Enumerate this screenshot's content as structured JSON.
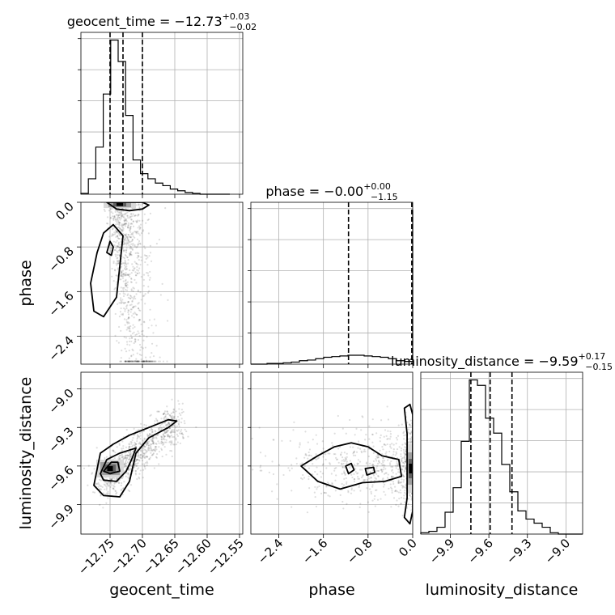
{
  "chart_data": {
    "type": "corner",
    "parameters": [
      "geocent_time",
      "phase",
      "luminosity_distance"
    ],
    "titles": [
      {
        "param": "geocent_time",
        "prefix": "geocent_time = ",
        "median": "−12.73",
        "plus": "+0.03",
        "minus": "−0.02"
      },
      {
        "param": "phase",
        "prefix": "phase = ",
        "median": "−0.00",
        "plus": "+0.00",
        "minus": "−1.15"
      },
      {
        "param": "luminosity_distance",
        "prefix": "luminosity_distance = ",
        "median": "−9.59",
        "plus": "+0.17",
        "minus": "−0.15"
      }
    ],
    "axes": {
      "geocent_time": {
        "range": [
          -12.795,
          -12.545
        ],
        "ticks": [
          -12.75,
          -12.7,
          -12.65,
          -12.6,
          -12.55
        ],
        "tick_labels": [
          "−12.75",
          "−12.70",
          "−12.65",
          "−12.60",
          "−12.55"
        ]
      },
      "phase": {
        "range": [
          -2.9,
          0.0
        ],
        "ticks": [
          -2.4,
          -1.6,
          -0.8,
          0.0
        ],
        "tick_labels": [
          "−2.4",
          "−1.6",
          "−0.8",
          "0.0"
        ]
      },
      "luminosity_distance": {
        "range": [
          -10.13,
          -8.87
        ],
        "ticks": [
          -9.9,
          -9.6,
          -9.3,
          -9.0
        ],
        "tick_labels": [
          "−9.9",
          "−9.6",
          "−9.3",
          "−9.0"
        ]
      }
    },
    "histograms": {
      "geocent_time": {
        "bins": [
          -12.795,
          -12.7835,
          -12.772,
          -12.7605,
          -12.749,
          -12.7375,
          -12.726,
          -12.7145,
          -12.703,
          -12.6915,
          -12.68,
          -12.6685,
          -12.657,
          -12.6455,
          -12.634,
          -12.6225,
          -12.611,
          -12.5995,
          -12.588,
          -12.5765,
          -12.565
        ],
        "counts": [
          1,
          18,
          55,
          117,
          180,
          155,
          92,
          40,
          24,
          18,
          13,
          10,
          6,
          4,
          2,
          1,
          0,
          0,
          0,
          0
        ],
        "quantiles": [
          -12.75,
          -12.73,
          -12.7
        ]
      },
      "phase": {
        "bins": [
          -2.9,
          -2.755,
          -2.61,
          -2.465,
          -2.32,
          -2.175,
          -2.03,
          -1.885,
          -1.74,
          -1.595,
          -1.45,
          -1.305,
          -1.16,
          -1.015,
          -0.87,
          -0.725,
          -0.58,
          -0.435,
          -0.29,
          -0.145,
          0.0
        ],
        "counts": [
          0,
          0,
          1,
          1,
          2,
          3,
          5,
          6,
          8,
          10,
          11,
          12,
          13,
          13,
          12,
          11,
          10,
          8,
          5,
          4,
          225
        ],
        "quantiles": [
          -1.15,
          -0.0,
          -0.0
        ]
      },
      "luminosity_distance": {
        "bins": [
          -10.13,
          -10.067,
          -10.004,
          -9.941,
          -9.878,
          -9.815,
          -9.752,
          -9.689,
          -9.626,
          -9.563,
          -9.5,
          -9.437,
          -9.374,
          -9.311,
          -9.248,
          -9.185,
          -9.122,
          -9.059,
          -8.996,
          -8.933,
          -8.87
        ],
        "counts": [
          1,
          2,
          5,
          16,
          34,
          68,
          113,
          109,
          85,
          74,
          51,
          31,
          17,
          11,
          8,
          5,
          1,
          0,
          0,
          0
        ],
        "quantiles": [
          -9.74,
          -9.59,
          -9.42
        ]
      }
    },
    "panels_2d": [
      {
        "x": "geocent_time",
        "y": "phase",
        "contours": [
          [
            [
              -12.755,
              -0.0
            ],
            [
              -12.74,
              -0.12
            ],
            [
              -12.72,
              -0.15
            ],
            [
              -12.7,
              -0.12
            ],
            [
              -12.69,
              -0.05
            ],
            [
              -12.7,
              0.0
            ]
          ],
          [
            [
              -12.77,
              -0.9
            ],
            [
              -12.76,
              -0.55
            ],
            [
              -12.745,
              -0.4
            ],
            [
              -12.73,
              -0.6
            ],
            [
              -12.735,
              -1.15
            ],
            [
              -12.74,
              -1.7
            ],
            [
              -12.76,
              -2.05
            ],
            [
              -12.775,
              -1.95
            ],
            [
              -12.78,
              -1.45
            ]
          ],
          [
            [
              -12.755,
              -0.9
            ],
            [
              -12.75,
              -0.7
            ],
            [
              -12.745,
              -0.8
            ],
            [
              -12.748,
              -0.95
            ]
          ]
        ],
        "density_peak": [
          -12.735,
          -0.03
        ]
      },
      {
        "x": "geocent_time",
        "y": "luminosity_distance",
        "contours": [
          [
            [
              -12.775,
              -9.75
            ],
            [
              -12.765,
              -9.5
            ],
            [
              -12.745,
              -9.43
            ],
            [
              -12.72,
              -9.36
            ],
            [
              -12.69,
              -9.3
            ],
            [
              -12.66,
              -9.24
            ],
            [
              -12.647,
              -9.25
            ],
            [
              -12.66,
              -9.3
            ],
            [
              -12.69,
              -9.38
            ],
            [
              -12.71,
              -9.5
            ],
            [
              -12.72,
              -9.72
            ],
            [
              -12.735,
              -9.84
            ],
            [
              -12.76,
              -9.83
            ]
          ],
          [
            [
              -12.765,
              -9.66
            ],
            [
              -12.755,
              -9.55
            ],
            [
              -12.735,
              -9.5
            ],
            [
              -12.71,
              -9.46
            ],
            [
              -12.715,
              -9.53
            ],
            [
              -12.725,
              -9.64
            ],
            [
              -12.74,
              -9.72
            ],
            [
              -12.76,
              -9.71
            ]
          ],
          [
            [
              -12.76,
              -9.64
            ],
            [
              -12.748,
              -9.57
            ],
            [
              -12.738,
              -9.57
            ],
            [
              -12.735,
              -9.64
            ],
            [
              -12.75,
              -9.66
            ]
          ]
        ],
        "density_peak": [
          -12.75,
          -9.62
        ]
      },
      {
        "x": "phase",
        "y": "luminosity_distance",
        "contours": [
          [
            [
              -2.0,
              -9.6
            ],
            [
              -1.7,
              -9.52
            ],
            [
              -1.4,
              -9.45
            ],
            [
              -1.1,
              -9.42
            ],
            [
              -0.8,
              -9.45
            ],
            [
              -0.55,
              -9.52
            ],
            [
              -0.25,
              -9.55
            ],
            [
              -0.2,
              -9.68
            ],
            [
              -0.5,
              -9.72
            ],
            [
              -0.9,
              -9.73
            ],
            [
              -1.3,
              -9.78
            ],
            [
              -1.7,
              -9.72
            ]
          ],
          [
            [
              -0.15,
              -9.15
            ],
            [
              -0.1,
              -9.35
            ],
            [
              -0.1,
              -9.6
            ],
            [
              -0.1,
              -9.85
            ],
            [
              -0.15,
              -10.0
            ],
            [
              -0.05,
              -10.05
            ],
            [
              0.0,
              -9.95
            ],
            [
              0.0,
              -9.2
            ],
            [
              -0.05,
              -9.12
            ]
          ],
          [
            [
              -1.2,
              -9.6
            ],
            [
              -1.1,
              -9.58
            ],
            [
              -1.05,
              -9.63
            ],
            [
              -1.15,
              -9.66
            ]
          ],
          [
            [
              -0.85,
              -9.62
            ],
            [
              -0.7,
              -9.61
            ],
            [
              -0.68,
              -9.65
            ],
            [
              -0.82,
              -9.67
            ]
          ]
        ],
        "density_peak": [
          -0.03,
          -9.62
        ]
      }
    ]
  }
}
